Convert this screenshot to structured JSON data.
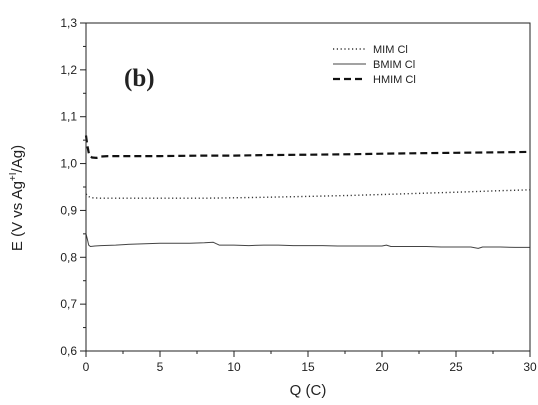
{
  "chart_data": {
    "type": "line",
    "panel_label": "(b)",
    "xlabel": "Q (C)",
    "ylabel": {
      "prefix": "E (V vs Ag",
      "superscript": "+I",
      "suffix": "/Ag)"
    },
    "xlim": [
      0,
      30
    ],
    "ylim": [
      0.6,
      1.3
    ],
    "x_ticks": [
      {
        "value": 0,
        "label": "0"
      },
      {
        "value": 5,
        "label": "5"
      },
      {
        "value": 10,
        "label": "10"
      },
      {
        "value": 15,
        "label": "15"
      },
      {
        "value": 20,
        "label": "20"
      },
      {
        "value": 25,
        "label": "25"
      },
      {
        "value": 30,
        "label": "30"
      }
    ],
    "y_ticks": [
      {
        "value": 0.6,
        "label": "0,6"
      },
      {
        "value": 0.7,
        "label": "0,7"
      },
      {
        "value": 0.8,
        "label": "0,8"
      },
      {
        "value": 0.9,
        "label": "0,9"
      },
      {
        "value": 1.0,
        "label": "1,0"
      },
      {
        "value": 1.1,
        "label": "1,1"
      },
      {
        "value": 1.2,
        "label": "1,2"
      },
      {
        "value": 1.3,
        "label": "1,3"
      }
    ],
    "grid": false,
    "legend_position": "top-right",
    "series": [
      {
        "name": "MIM Cl",
        "style": "dotted",
        "color": "#333333",
        "x": [
          0,
          0.15,
          0.4,
          1,
          2,
          3,
          5,
          8,
          10,
          12,
          15,
          18,
          20,
          22,
          25,
          28,
          30
        ],
        "y": [
          0.935,
          0.93,
          0.927,
          0.926,
          0.926,
          0.926,
          0.926,
          0.926,
          0.927,
          0.928,
          0.93,
          0.932,
          0.934,
          0.936,
          0.939,
          0.942,
          0.944
        ]
      },
      {
        "name": "BMIM Cl",
        "style": "solid",
        "color": "#444444",
        "x": [
          0,
          0.08,
          0.18,
          0.3,
          0.6,
          1,
          2,
          3,
          4,
          5,
          6,
          7,
          8,
          8.6,
          9,
          9.5,
          10,
          11,
          12,
          13,
          14,
          15,
          16,
          17,
          18,
          19,
          20,
          20.3,
          20.6,
          21,
          22,
          23,
          24,
          25,
          26,
          26.5,
          26.8,
          27,
          28,
          29,
          30
        ],
        "y": [
          0.85,
          0.84,
          0.826,
          0.823,
          0.824,
          0.825,
          0.826,
          0.828,
          0.829,
          0.83,
          0.83,
          0.83,
          0.831,
          0.832,
          0.826,
          0.826,
          0.826,
          0.825,
          0.826,
          0.826,
          0.825,
          0.825,
          0.825,
          0.824,
          0.824,
          0.824,
          0.824,
          0.826,
          0.823,
          0.823,
          0.823,
          0.823,
          0.822,
          0.822,
          0.822,
          0.819,
          0.822,
          0.822,
          0.822,
          0.821,
          0.821
        ]
      },
      {
        "name": "HMIM Cl",
        "style": "dashed",
        "color": "#111111",
        "x": [
          0,
          0.08,
          0.2,
          0.4,
          0.7,
          1,
          1.5,
          2,
          3,
          5,
          8,
          10,
          12,
          15,
          18,
          20,
          22,
          25,
          28,
          30
        ],
        "y": [
          1.06,
          1.04,
          1.02,
          1.013,
          1.012,
          1.015,
          1.016,
          1.016,
          1.016,
          1.016,
          1.017,
          1.017,
          1.018,
          1.019,
          1.02,
          1.021,
          1.022,
          1.023,
          1.024,
          1.025
        ]
      }
    ]
  }
}
